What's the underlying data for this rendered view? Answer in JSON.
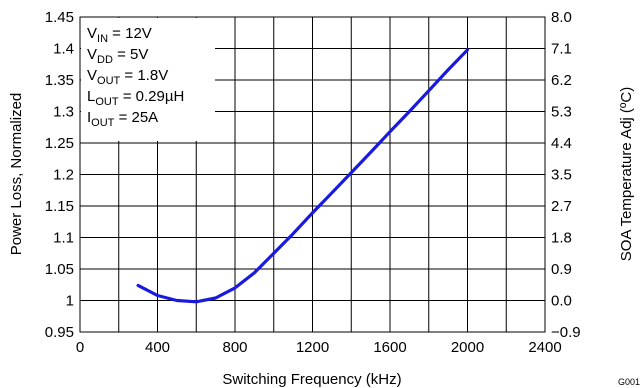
{
  "chart_data": {
    "type": "line",
    "title": "",
    "xlabel": "Switching Frequency (kHz)",
    "ylabel": "Power Loss, Normalized",
    "y2label": "SOA Temperature Adj (ºC)",
    "xlim": [
      0,
      2400
    ],
    "ylim": [
      0.95,
      1.45
    ],
    "x_ticks": [
      0,
      400,
      800,
      1200,
      1600,
      2000,
      2400
    ],
    "y_ticks": [
      0.95,
      1,
      1.05,
      1.1,
      1.15,
      1.2,
      1.25,
      1.3,
      1.35,
      1.4,
      1.45
    ],
    "y_tick_labels": [
      "0.95",
      "1",
      "1.05",
      "1.1",
      "1.15",
      "1.2",
      "1.25",
      "1.3",
      "1.35",
      "1.4",
      "1.45"
    ],
    "y2_tick_labels": [
      "−0.9",
      "0.0",
      "0.9",
      "1.8",
      "2.7",
      "3.5",
      "4.4",
      "5.3",
      "6.2",
      "7.1",
      "8.0"
    ],
    "grid": true,
    "line_color": "#1a1adf",
    "series": [
      {
        "x": [
          300,
          400,
          500,
          600,
          700,
          800,
          900,
          1000,
          1100,
          1200,
          1300,
          1400,
          1500,
          1600,
          1700,
          1800,
          1900,
          2000
        ],
        "y": [
          1.024,
          1.008,
          1.0,
          0.998,
          1.004,
          1.02,
          1.044,
          1.075,
          1.106,
          1.139,
          1.171,
          1.203,
          1.235,
          1.268,
          1.3,
          1.333,
          1.366,
          1.398
        ]
      }
    ],
    "annotations": [
      {
        "base": "V",
        "sub": "IN",
        "rest": " = 12V"
      },
      {
        "base": "V",
        "sub": "DD",
        "rest": " = 5V"
      },
      {
        "base": "V",
        "sub": "OUT",
        "rest": " = 1.8V"
      },
      {
        "base": "L",
        "sub": "OUT",
        "rest": " = 0.29µH"
      },
      {
        "base": "I",
        "sub": "OUT",
        "rest": " = 25A"
      }
    ],
    "figure_code": "G001"
  }
}
